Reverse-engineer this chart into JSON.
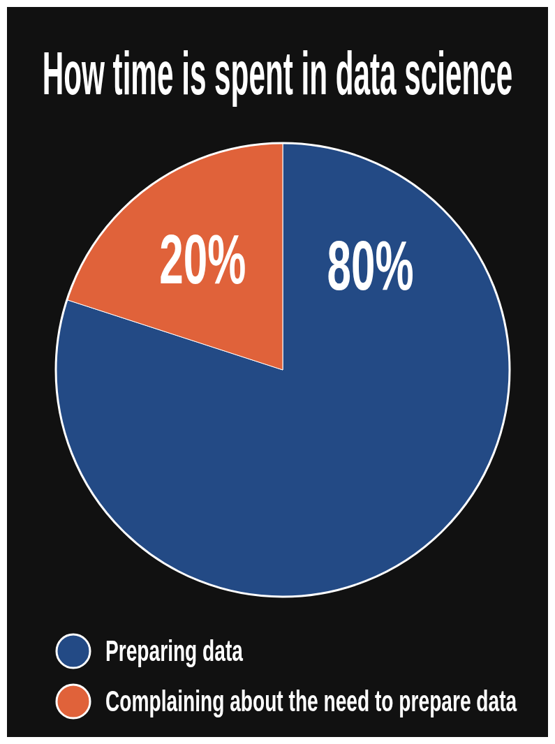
{
  "chart_data": {
    "type": "pie",
    "title": "How time is spent in data science",
    "categories": [
      "Preparing data",
      "Complaining about the need to prepare data"
    ],
    "values": [
      80,
      20
    ],
    "colors": [
      "#234a85",
      "#e0623a"
    ],
    "value_labels": [
      "80%",
      "20%"
    ],
    "legend": "bottom left"
  }
}
